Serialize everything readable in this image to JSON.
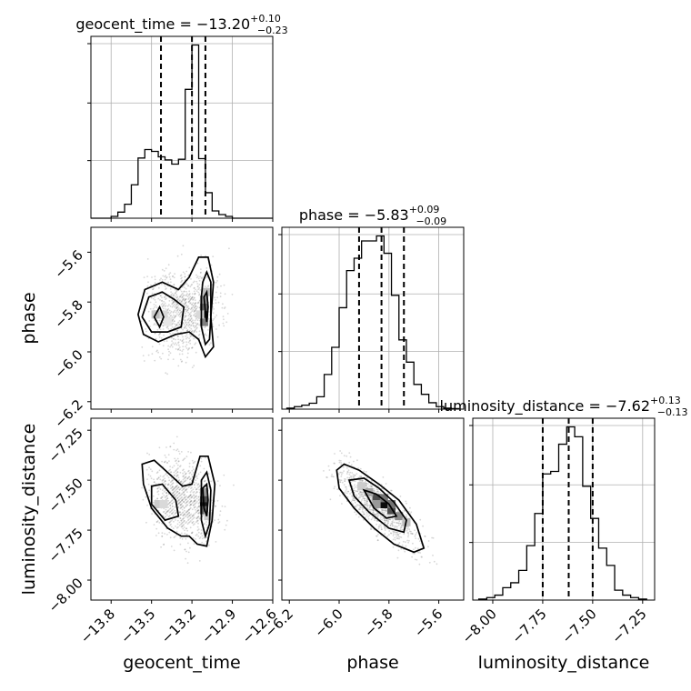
{
  "chart_data": {
    "type": "corner",
    "parameters": [
      {
        "name": "geocent_time",
        "label": "geocent_time",
        "title": "geocent_time = −13.20",
        "title_sup": "+0.10",
        "title_sub": "−0.23",
        "median": -13.2,
        "q_low": -13.43,
        "q_high": -13.1,
        "range": [
          -13.95,
          -12.6
        ],
        "ticks": [
          -13.8,
          -13.5,
          -13.2,
          -12.9,
          -12.6
        ],
        "tick_labels": [
          "−13.8",
          "−13.5",
          "−13.2",
          "−12.9",
          "−12.6"
        ],
        "hist_bins": [
          -13.95,
          -13.9,
          -13.85,
          -13.8,
          -13.75,
          -13.7,
          -13.65,
          -13.6,
          -13.55,
          -13.5,
          -13.45,
          -13.4,
          -13.35,
          -13.3,
          -13.25,
          -13.2,
          -13.15,
          -13.1,
          -13.05,
          -13.0,
          -12.95,
          -12.9,
          -12.85,
          -12.8,
          -12.75,
          -12.7,
          -12.65,
          -12.6
        ],
        "hist_counts": [
          0,
          0,
          0,
          0.3,
          1.0,
          2.3,
          5.5,
          9.9,
          11.3,
          11.0,
          10.1,
          9.6,
          8.9,
          9.7,
          21.2,
          28.5,
          9.8,
          4.2,
          1.2,
          0.6,
          0.3,
          0,
          0,
          0,
          0,
          0,
          0
        ]
      },
      {
        "name": "phase",
        "label": "phase",
        "title": "phase = −5.83",
        "title_sup": "+0.09",
        "title_sub": "−0.09",
        "median": -5.83,
        "q_low": -5.92,
        "q_high": -5.74,
        "range": [
          -6.23,
          -5.5
        ],
        "ticks": [
          -6.2,
          -6.0,
          -5.8,
          -5.6
        ],
        "tick_labels": [
          "−6.2",
          "−6.0",
          "−5.8",
          "−5.6"
        ],
        "hist_bins": [
          -6.21,
          -6.18,
          -6.15,
          -6.12,
          -6.09,
          -6.06,
          -6.03,
          -6.0,
          -5.97,
          -5.94,
          -5.91,
          -5.88,
          -5.85,
          -5.82,
          -5.79,
          -5.76,
          -5.73,
          -5.7,
          -5.67,
          -5.64,
          -5.61,
          -5.58,
          -5.55,
          -5.52
        ],
        "hist_counts": [
          0.2,
          0.5,
          0.8,
          1.2,
          2.5,
          7.0,
          12.5,
          20.5,
          28.0,
          30.5,
          34.0,
          34.0,
          35.0,
          31.5,
          23.0,
          14.0,
          9.5,
          5.0,
          3.0,
          1.3,
          0.5,
          0.2,
          0.1
        ]
      },
      {
        "name": "luminosity_distance",
        "label": "luminosity_distance",
        "title": "luminosity_distance = −7.62",
        "title_sup": "+0.13",
        "title_sub": "−0.13",
        "median": -7.62,
        "q_low": -7.75,
        "q_high": -7.5,
        "range": [
          -8.1,
          -7.19
        ],
        "ticks": [
          -8.0,
          -7.75,
          -7.5,
          -7.25
        ],
        "tick_labels": [
          "−8.00",
          "−7.75",
          "−7.50",
          "−7.25"
        ],
        "hist_bins": [
          -8.07,
          -8.03,
          -7.99,
          -7.95,
          -7.91,
          -7.87,
          -7.83,
          -7.79,
          -7.75,
          -7.71,
          -7.67,
          -7.63,
          -7.59,
          -7.55,
          -7.51,
          -7.47,
          -7.43,
          -7.39,
          -7.35,
          -7.31,
          -7.27,
          -7.23
        ],
        "hist_counts": [
          0.2,
          0.5,
          1.0,
          2.5,
          3.5,
          6.0,
          11.0,
          17.5,
          25.5,
          26.0,
          31.5,
          35.0,
          33.0,
          23.0,
          16.5,
          10.5,
          7.0,
          2.0,
          1.0,
          0.5,
          0.2
        ]
      }
    ],
    "pairs": [
      {
        "x": "geocent_time",
        "y": "phase",
        "contours": [
          [
            [
              -13.6,
              -5.85
            ],
            [
              -13.55,
              -5.75
            ],
            [
              -13.42,
              -5.72
            ],
            [
              -13.3,
              -5.75
            ],
            [
              -13.22,
              -5.7
            ],
            [
              -13.15,
              -5.62
            ],
            [
              -13.08,
              -5.62
            ],
            [
              -13.04,
              -5.72
            ],
            [
              -13.06,
              -5.86
            ],
            [
              -13.04,
              -5.98
            ],
            [
              -13.1,
              -6.02
            ],
            [
              -13.15,
              -5.95
            ],
            [
              -13.22,
              -5.92
            ],
            [
              -13.32,
              -5.93
            ],
            [
              -13.45,
              -5.96
            ],
            [
              -13.56,
              -5.93
            ]
          ],
          [
            [
              -13.57,
              -5.86
            ],
            [
              -13.52,
              -5.78
            ],
            [
              -13.42,
              -5.76
            ],
            [
              -13.33,
              -5.79
            ],
            [
              -13.26,
              -5.82
            ],
            [
              -13.28,
              -5.9
            ],
            [
              -13.38,
              -5.92
            ],
            [
              -13.5,
              -5.92
            ]
          ],
          [
            [
              -13.12,
              -5.72
            ],
            [
              -13.09,
              -5.68
            ],
            [
              -13.06,
              -5.72
            ],
            [
              -13.06,
              -5.86
            ],
            [
              -13.07,
              -5.95
            ],
            [
              -13.1,
              -5.97
            ],
            [
              -13.13,
              -5.9
            ],
            [
              -13.13,
              -5.78
            ]
          ],
          [
            [
              -13.48,
              -5.86
            ],
            [
              -13.44,
              -5.82
            ],
            [
              -13.41,
              -5.86
            ],
            [
              -13.44,
              -5.9
            ]
          ],
          [
            [
              -13.11,
              -5.78
            ],
            [
              -13.09,
              -5.76
            ],
            [
              -13.08,
              -5.82
            ],
            [
              -13.09,
              -5.88
            ],
            [
              -13.1,
              -5.84
            ]
          ]
        ],
        "density_cells": [
          [
            -13.11,
            -5.85,
            0.9
          ],
          [
            -13.11,
            -5.82,
            0.6
          ],
          [
            -13.11,
            -5.79,
            0.4
          ],
          [
            -13.11,
            -5.88,
            0.5
          ],
          [
            -13.47,
            -5.85,
            0.2
          ],
          [
            -13.44,
            -5.85,
            0.25
          ],
          [
            -13.41,
            -5.85,
            0.15
          ],
          [
            -13.38,
            -5.88,
            0.1
          ],
          [
            -13.09,
            -5.76,
            0.25
          ],
          [
            -13.14,
            -5.85,
            0.15
          ]
        ]
      },
      {
        "x": "geocent_time",
        "y": "luminosity_distance",
        "contours": [
          [
            [
              -13.57,
              -7.42
            ],
            [
              -13.48,
              -7.4
            ],
            [
              -13.35,
              -7.48
            ],
            [
              -13.27,
              -7.53
            ],
            [
              -13.2,
              -7.52
            ],
            [
              -13.14,
              -7.38
            ],
            [
              -13.08,
              -7.38
            ],
            [
              -13.03,
              -7.52
            ],
            [
              -13.05,
              -7.7
            ],
            [
              -13.09,
              -7.83
            ],
            [
              -13.16,
              -7.82
            ],
            [
              -13.22,
              -7.78
            ],
            [
              -13.28,
              -7.78
            ],
            [
              -13.38,
              -7.74
            ],
            [
              -13.5,
              -7.64
            ],
            [
              -13.56,
              -7.52
            ]
          ],
          [
            [
              -13.5,
              -7.53
            ],
            [
              -13.42,
              -7.52
            ],
            [
              -13.32,
              -7.6
            ],
            [
              -13.3,
              -7.68
            ],
            [
              -13.4,
              -7.7
            ],
            [
              -13.5,
              -7.62
            ]
          ],
          [
            [
              -13.13,
              -7.5
            ],
            [
              -13.09,
              -7.46
            ],
            [
              -13.06,
              -7.55
            ],
            [
              -13.07,
              -7.72
            ],
            [
              -13.1,
              -7.78
            ],
            [
              -13.13,
              -7.7
            ]
          ],
          [
            [
              -13.12,
              -7.54
            ],
            [
              -13.09,
              -7.52
            ],
            [
              -13.08,
              -7.6
            ],
            [
              -13.09,
              -7.68
            ],
            [
              -13.11,
              -7.64
            ]
          ]
        ],
        "density_cells": [
          [
            -13.11,
            -7.62,
            0.9
          ],
          [
            -13.11,
            -7.59,
            0.7
          ],
          [
            -13.11,
            -7.65,
            0.6
          ],
          [
            -13.11,
            -7.56,
            0.4
          ],
          [
            -13.45,
            -7.62,
            0.2
          ],
          [
            -13.41,
            -7.62,
            0.15
          ],
          [
            -13.08,
            -7.68,
            0.2
          ]
        ]
      },
      {
        "x": "phase",
        "y": "luminosity_distance",
        "contours": [
          [
            [
              -6.01,
              -7.45
            ],
            [
              -5.98,
              -7.42
            ],
            [
              -5.92,
              -7.45
            ],
            [
              -5.84,
              -7.52
            ],
            [
              -5.76,
              -7.6
            ],
            [
              -5.69,
              -7.72
            ],
            [
              -5.66,
              -7.84
            ],
            [
              -5.7,
              -7.86
            ],
            [
              -5.78,
              -7.82
            ],
            [
              -5.86,
              -7.74
            ],
            [
              -5.94,
              -7.64
            ],
            [
              -6.0,
              -7.54
            ]
          ],
          [
            [
              -5.96,
              -7.5
            ],
            [
              -5.9,
              -7.49
            ],
            [
              -5.84,
              -7.54
            ],
            [
              -5.78,
              -7.61
            ],
            [
              -5.73,
              -7.7
            ],
            [
              -5.74,
              -7.76
            ],
            [
              -5.8,
              -7.74
            ],
            [
              -5.88,
              -7.66
            ],
            [
              -5.94,
              -7.58
            ]
          ],
          [
            [
              -5.9,
              -7.55
            ],
            [
              -5.85,
              -7.57
            ],
            [
              -5.8,
              -7.62
            ],
            [
              -5.77,
              -7.68
            ],
            [
              -5.81,
              -7.69
            ],
            [
              -5.86,
              -7.64
            ]
          ]
        ],
        "density_cells": [
          [
            -5.82,
            -7.62,
            0.95
          ],
          [
            -5.79,
            -7.65,
            0.7
          ],
          [
            -5.85,
            -7.59,
            0.7
          ],
          [
            -5.82,
            -7.59,
            0.55
          ],
          [
            -5.79,
            -7.62,
            0.55
          ],
          [
            -5.76,
            -7.68,
            0.45
          ],
          [
            -5.88,
            -7.56,
            0.35
          ],
          [
            -5.85,
            -7.62,
            0.4
          ],
          [
            -5.91,
            -7.53,
            0.2
          ],
          [
            -5.73,
            -7.71,
            0.25
          ]
        ]
      }
    ]
  }
}
